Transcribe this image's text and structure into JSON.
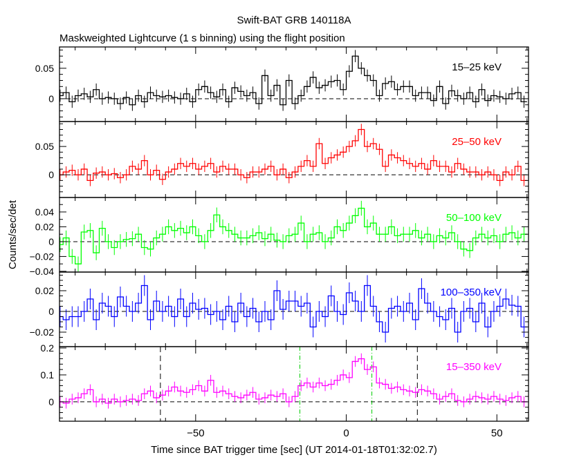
{
  "chart_data": {
    "type": "line",
    "title": "Swift-BAT GRB 140118A",
    "subtitle": "Maskweighted Lightcurve (1 s binning) using the flight position",
    "xlabel": "Time since BAT trigger time [sec] (UT 2014-01-18T01:32:02.7)",
    "ylabel": "Counts/sec/det",
    "xlim": [
      -95.2,
      60.5
    ],
    "x_start": -95,
    "x_step": 2,
    "xticks": [
      -50,
      0,
      50
    ],
    "xtick_labels": [
      "−50",
      "0",
      "50"
    ],
    "vertical_lines": [
      {
        "x": -61.7,
        "color": "#000000",
        "style": "dashed"
      },
      {
        "x": -15.4,
        "color": "#00cc00",
        "style": "dashdot"
      },
      {
        "x": 8.5,
        "color": "#00cc00",
        "style": "dashdot"
      },
      {
        "x": 23.6,
        "color": "#000000",
        "style": "dashed"
      }
    ],
    "panels": [
      {
        "name": "15-25 keV",
        "label": "15–25 keV",
        "color": "#000000",
        "ylim": [
          -0.0375,
          0.085
        ],
        "yticks": [
          0,
          0.05
        ],
        "ytick_labels": [
          "0",
          "0.05"
        ],
        "minor": 0.01,
        "err": 0.01,
        "values": [
          0.005,
          0.01,
          -0.005,
          0.005,
          0.008,
          0.003,
          0.015,
          0.0,
          0.002,
          0.0,
          -0.008,
          0.002,
          -0.01,
          0.005,
          -0.005,
          0.01,
          0.005,
          0.003,
          0.005,
          0.002,
          0.0,
          0.008,
          -0.005,
          0.015,
          0.02,
          0.01,
          0.003,
          0.015,
          -0.005,
          0.018,
          0.012,
          0.005,
          0.01,
          -0.008,
          0.038,
          0.005,
          0.022,
          -0.01,
          0.03,
          -0.008,
          0.005,
          0.02,
          0.035,
          0.018,
          0.022,
          0.028,
          0.03,
          0.015,
          0.045,
          0.07,
          0.05,
          0.038,
          0.03,
          0.005,
          0.025,
          0.028,
          0.015,
          0.02,
          0.02,
          0.005,
          0.01,
          0.01,
          -0.003,
          0.02,
          -0.008,
          0.013,
          0.005,
          0.0,
          0.01,
          -0.005,
          0.015,
          -0.003,
          0.005,
          0.003,
          0.0,
          0.008,
          0.01,
          -0.005
        ]
      },
      {
        "name": "25-50 keV",
        "label": "25–50 keV",
        "color": "#ff0000",
        "ylim": [
          -0.04,
          0.094
        ],
        "yticks": [
          0,
          0.05
        ],
        "ytick_labels": [
          "0",
          "0.05"
        ],
        "minor": 0.01,
        "err": 0.01,
        "values": [
          0.0,
          0.005,
          0.008,
          0.0,
          0.01,
          -0.01,
          0.003,
          0.005,
          0.0,
          0.002,
          -0.005,
          0.0,
          0.015,
          0.01,
          0.025,
          0.0,
          0.008,
          -0.008,
          0.005,
          0.01,
          0.02,
          0.015,
          0.02,
          0.01,
          0.015,
          0.02,
          0.005,
          0.015,
          0.01,
          0.01,
          0.0,
          -0.005,
          0.005,
          0.005,
          0.01,
          0.015,
          0.0,
          0.01,
          -0.005,
          0.005,
          0.015,
          0.025,
          0.015,
          0.055,
          0.02,
          0.03,
          0.035,
          0.04,
          0.05,
          0.06,
          0.08,
          0.05,
          0.055,
          0.045,
          0.015,
          0.035,
          0.03,
          0.025,
          0.02,
          0.015,
          0.02,
          0.01,
          0.025,
          0.015,
          0.015,
          0.005,
          0.02,
          0.01,
          0.005,
          0.005,
          0.0,
          0.005,
          0.0,
          -0.01,
          0.005,
          0.0,
          0.015,
          -0.01
        ]
      },
      {
        "name": "50-100 keV",
        "label": "50–100 keV",
        "color": "#00ff00",
        "ylim": [
          -0.041,
          0.0595
        ],
        "yticks": [
          -0.04,
          -0.02,
          0,
          0.02,
          0.04
        ],
        "ytick_labels": [
          "−0.04",
          "−0.02",
          "0",
          "0.02",
          "0.04"
        ],
        "minor": 0.01,
        "err": 0.01,
        "values": [
          -0.004,
          0.005,
          -0.02,
          -0.03,
          0.013,
          0.015,
          -0.015,
          0.018,
          0.0,
          -0.008,
          0.0,
          0.003,
          0.004,
          0.01,
          -0.008,
          -0.01,
          0.005,
          0.01,
          0.02,
          0.015,
          0.018,
          0.012,
          0.02,
          0.008,
          0.0,
          0.015,
          0.036,
          0.02,
          0.015,
          0.01,
          0.005,
          0.005,
          0.008,
          0.012,
          0.004,
          0.01,
          0.002,
          0.0,
          0.008,
          0.01,
          0.025,
          0.0,
          0.01,
          0.012,
          0.0,
          0.005,
          0.02,
          0.015,
          0.025,
          0.035,
          0.045,
          0.02,
          0.025,
          0.01,
          0.01,
          0.02,
          0.008,
          0.01,
          0.01,
          0.015,
          0.005,
          0.01,
          0.0,
          0.008,
          0.005,
          0.012,
          0.0,
          -0.01,
          -0.012,
          0.005,
          0.01,
          0.005,
          0.008,
          0.0,
          0.01,
          0.012,
          0.005,
          0.01
        ]
      },
      {
        "name": "100-350 keV",
        "label": "100–350 keV",
        "color": "#0000ff",
        "ylim": [
          -0.034,
          0.038
        ],
        "yticks": [
          -0.02,
          0,
          0.02
        ],
        "ytick_labels": [
          "−0.02",
          "0",
          "0.02"
        ],
        "minor": 0.005,
        "err": 0.01,
        "values": [
          -0.005,
          -0.008,
          -0.005,
          -0.005,
          0.0,
          0.012,
          -0.008,
          0.008,
          0.005,
          -0.005,
          0.014,
          0.005,
          0.0,
          0.008,
          0.025,
          -0.008,
          0.01,
          0.0,
          0.005,
          -0.005,
          0.012,
          -0.005,
          0.008,
          0.002,
          0.003,
          -0.003,
          0.0,
          -0.008,
          0.005,
          -0.01,
          0.008,
          -0.005,
          0.003,
          -0.01,
          0.0,
          -0.008,
          0.02,
          0.002,
          0.01,
          0.01,
          0.005,
          0.008,
          -0.015,
          0.0,
          -0.005,
          0.015,
          0.0,
          -0.003,
          0.018,
          0.01,
          0.0,
          0.025,
          0.005,
          -0.01,
          -0.02,
          0.003,
          0.005,
          0.0,
          0.008,
          -0.008,
          0.022,
          0.008,
          0.0,
          -0.005,
          -0.008,
          0.003,
          -0.02,
          0.0,
          0.003,
          -0.01,
          0.008,
          -0.015,
          0.0,
          0.005,
          0.012,
          0.006,
          0.005,
          -0.015
        ]
      },
      {
        "name": "15-350 keV",
        "label": "15–350 keV",
        "color": "#ff00ff",
        "ylim": [
          -0.072,
          0.205
        ],
        "yticks": [
          0,
          0.1,
          0.2
        ],
        "ytick_labels": [
          "0",
          "0.1",
          "0.2"
        ],
        "minor": 0.02,
        "err": 0.02,
        "values": [
          0.0,
          -0.005,
          0.01,
          0.015,
          0.03,
          0.045,
          0.0,
          0.01,
          -0.005,
          0.01,
          0.0,
          0.005,
          0.01,
          0.005,
          0.03,
          0.04,
          0.015,
          0.025,
          0.04,
          0.055,
          0.04,
          0.035,
          0.045,
          0.06,
          0.04,
          0.08,
          0.035,
          0.04,
          0.03,
          0.02,
          0.015,
          0.025,
          0.035,
          0.01,
          0.015,
          0.025,
          0.02,
          0.03,
          0.0,
          0.02,
          0.06,
          0.07,
          0.055,
          0.07,
          0.06,
          0.065,
          0.08,
          0.1,
          0.09,
          0.15,
          0.16,
          0.12,
          0.13,
          0.07,
          0.065,
          0.05,
          0.055,
          0.045,
          0.04,
          0.035,
          0.045,
          0.04,
          0.03,
          0.01,
          0.02,
          0.03,
          0.005,
          0.0,
          0.01,
          0.02,
          0.015,
          0.01,
          0.02,
          0.01,
          0.005,
          0.015,
          0.02,
          0.0
        ]
      }
    ]
  }
}
